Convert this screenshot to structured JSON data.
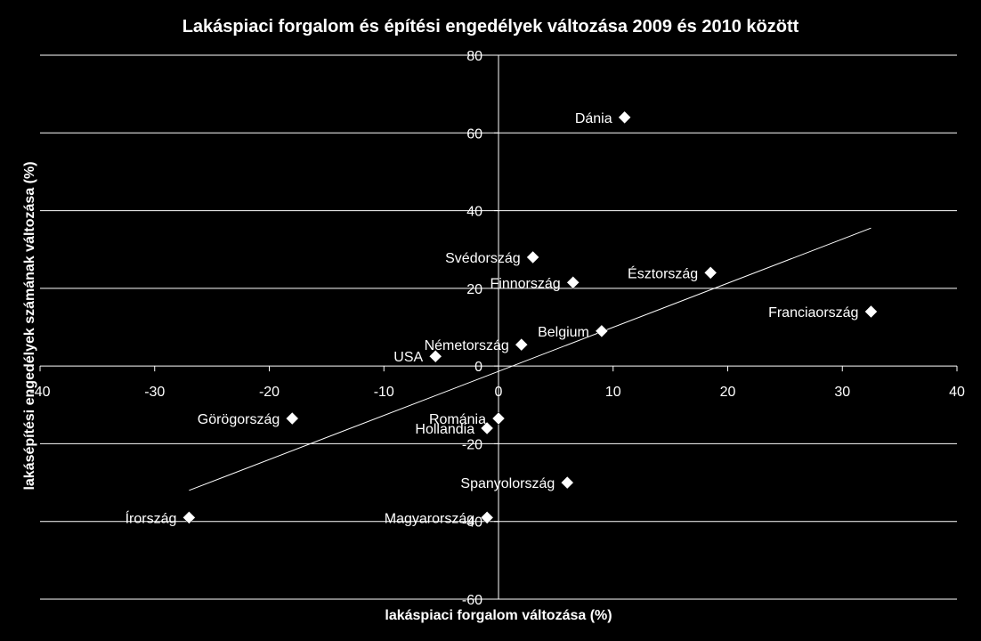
{
  "chart_data": {
    "type": "scatter",
    "title": "Lakáspiaci forgalom és építési engedélyek változása 2009 és 2010 között",
    "xlabel": "lakáspiaci forgalom változása (%)",
    "ylabel": "lakásépítési engedélyek számának változása (%)",
    "xlim": [
      -40,
      40
    ],
    "ylim": [
      -60,
      80
    ],
    "xticks": [
      -40,
      -30,
      -20,
      -10,
      0,
      10,
      20,
      30,
      40
    ],
    "yticks": [
      -60,
      -40,
      -20,
      0,
      20,
      40,
      60,
      80
    ],
    "grid": "horizontal",
    "marker": "diamond",
    "points": [
      {
        "label": "Dánia",
        "x": 11,
        "y": 64
      },
      {
        "label": "Svédország",
        "x": 3,
        "y": 28
      },
      {
        "label": "Finnország",
        "x": 6.5,
        "y": 21.5
      },
      {
        "label": "Észtország",
        "x": 18.5,
        "y": 24
      },
      {
        "label": "Franciaország",
        "x": 32.5,
        "y": 14
      },
      {
        "label": "Belgium",
        "x": 9,
        "y": 9
      },
      {
        "label": "Németország",
        "x": 2,
        "y": 5.5
      },
      {
        "label": "USA",
        "x": -5.5,
        "y": 2.5
      },
      {
        "label": "Románia",
        "x": 0,
        "y": -13.5
      },
      {
        "label": "Hollandia",
        "x": -1,
        "y": -16
      },
      {
        "label": "Görögország",
        "x": -18,
        "y": -13.5
      },
      {
        "label": "Spanyolország",
        "x": 6,
        "y": -30
      },
      {
        "label": "Magyarország",
        "x": -1,
        "y": -39
      },
      {
        "label": "Írország",
        "x": -27,
        "y": -39
      }
    ],
    "trendline": {
      "x": [
        -27,
        32.5
      ],
      "y": [
        -32,
        35.5
      ]
    }
  }
}
